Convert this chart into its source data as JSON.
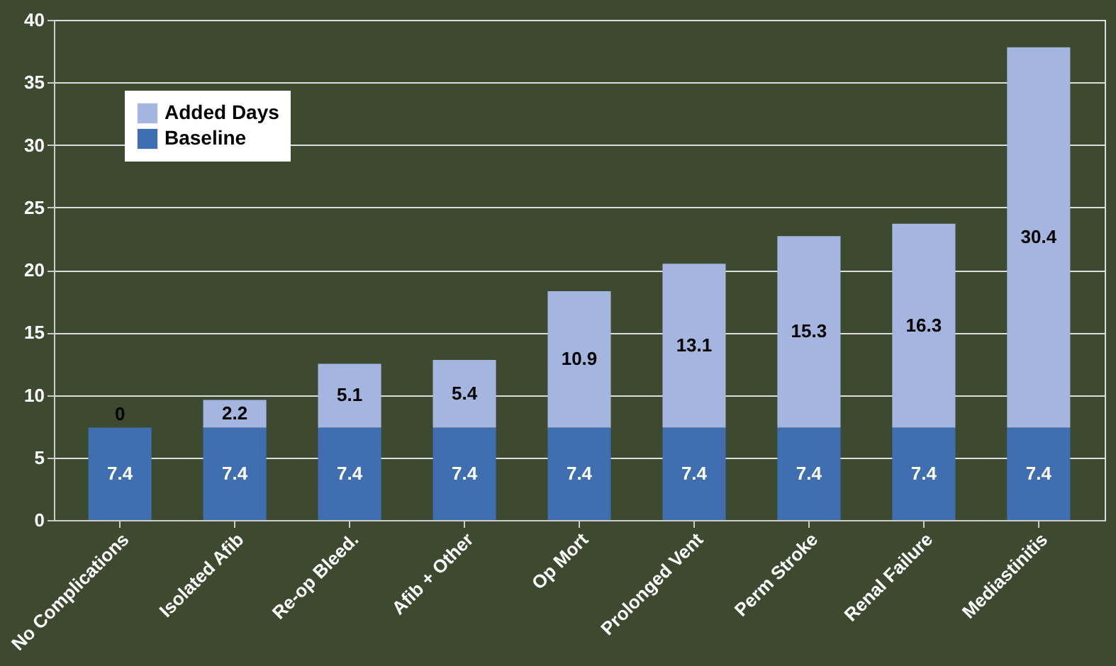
{
  "chart_data": {
    "type": "bar",
    "stacked": true,
    "categories": [
      "No Complications",
      "Isolated Afib",
      "Re-op Bleed.",
      "Afib + Other",
      "Op Mort",
      "Prolonged Vent",
      "Perm Stroke",
      "Renal Failure",
      "Mediastinitis"
    ],
    "series": [
      {
        "name": "Baseline",
        "color": "#3f6fb0",
        "values": [
          7.4,
          7.4,
          7.4,
          7.4,
          7.4,
          7.4,
          7.4,
          7.4,
          7.4
        ]
      },
      {
        "name": "Added Days",
        "color": "#a4b6e0",
        "values": [
          0,
          2.2,
          5.1,
          5.4,
          10.9,
          13.1,
          15.3,
          16.3,
          30.4
        ]
      }
    ],
    "ylim": [
      0,
      40
    ],
    "yticks": [
      0,
      5,
      10,
      15,
      20,
      25,
      30,
      35,
      40
    ],
    "grid": "y",
    "legend": "top left",
    "data_labels": true
  }
}
